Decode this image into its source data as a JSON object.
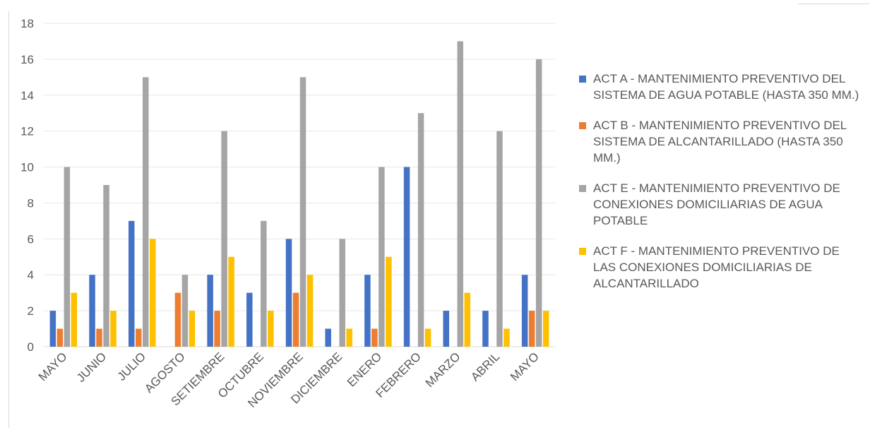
{
  "chart_data": {
    "type": "bar",
    "categories": [
      "MAYO",
      "JUNIO",
      "JULIO",
      "AGOSTO",
      "SETIEMBRE",
      "OCTUBRE",
      "NOVIEMBRE",
      "DICIEMBRE",
      "ENERO",
      "FEBRERO",
      "MARZO",
      "ABRIL",
      "MAYO"
    ],
    "series": [
      {
        "name": "ACT A - MANTENIMIENTO PREVENTIVO DEL SISTEMA DE AGUA POTABLE (HASTA 350 MM.)",
        "color": "#4472C4",
        "values": [
          2,
          4,
          7,
          0,
          4,
          3,
          6,
          1,
          4,
          10,
          2,
          2,
          4
        ]
      },
      {
        "name": "ACT B - MANTENIMIENTO PREVENTIVO DEL SISTEMA DE ALCANTARILLADO (HASTA 350 MM.)",
        "color": "#ED7D31",
        "values": [
          1,
          1,
          1,
          3,
          2,
          0,
          3,
          0,
          1,
          0,
          0,
          0,
          2
        ]
      },
      {
        "name": "ACT E - MANTENIMIENTO PREVENTIVO DE CONEXIONES DOMICILIARIAS DE AGUA POTABLE",
        "color": "#A5A5A5",
        "values": [
          10,
          9,
          15,
          4,
          12,
          7,
          15,
          6,
          10,
          13,
          17,
          12,
          16
        ]
      },
      {
        "name": "ACT F - MANTENIMIENTO PREVENTIVO DE LAS CONEXIONES DOMICILIARIAS DE ALCANTARILLADO",
        "color": "#FFC000",
        "values": [
          3,
          2,
          6,
          2,
          5,
          2,
          4,
          1,
          5,
          1,
          3,
          1,
          2
        ]
      }
    ],
    "ylim": [
      0,
      18
    ],
    "yticks": [
      0,
      2,
      4,
      6,
      8,
      10,
      12,
      14,
      16,
      18
    ],
    "grid": true,
    "legend_position": "right"
  }
}
